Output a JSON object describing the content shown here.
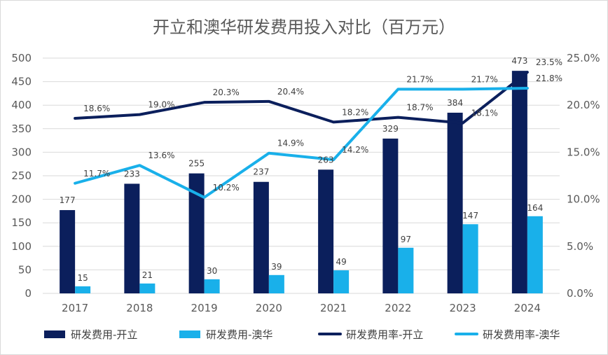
{
  "chart_data": {
    "type": "bar",
    "title": "开立和澳华研发费用投入对比（百万元）",
    "categories": [
      "2017",
      "2018",
      "2019",
      "2020",
      "2021",
      "2022",
      "2023",
      "2024"
    ],
    "y_left": {
      "min": 0,
      "max": 500,
      "step": 50,
      "ticks": [
        "0",
        "50",
        "100",
        "150",
        "200",
        "250",
        "300",
        "350",
        "400",
        "450",
        "500"
      ]
    },
    "y_right": {
      "min": 0,
      "max": 25,
      "step": 5,
      "ticks": [
        "0.0%",
        "5.0%",
        "10.0%",
        "15.0%",
        "20.0%",
        "25.0%"
      ]
    },
    "series": [
      {
        "name": "研发费用-开立",
        "kind": "bar",
        "axis": "left",
        "color": "#0b1f5c",
        "values": [
          177,
          233,
          255,
          237,
          263,
          329,
          384,
          473
        ],
        "labels": [
          "177",
          "233",
          "255",
          "237",
          "263",
          "329",
          "384",
          "473"
        ]
      },
      {
        "name": "研发费用-澳华",
        "kind": "bar",
        "axis": "left",
        "color": "#19b0ea",
        "values": [
          15,
          21,
          30,
          39,
          49,
          97,
          147,
          164
        ],
        "labels": [
          "15",
          "21",
          "30",
          "39",
          "49",
          "97",
          "147",
          "164"
        ]
      },
      {
        "name": "研发费用率-开立",
        "kind": "line",
        "axis": "right",
        "color": "#0b1f5c",
        "values": [
          18.6,
          19.0,
          20.3,
          20.4,
          18.2,
          18.7,
          18.1,
          23.5
        ],
        "labels": [
          "18.6%",
          "19.0%",
          "20.3%",
          "20.4%",
          "18.2%",
          "18.7%",
          "18.1%",
          "23.5%"
        ]
      },
      {
        "name": "研发费用率-澳华",
        "kind": "line",
        "axis": "right",
        "color": "#19b0ea",
        "values": [
          11.7,
          13.6,
          10.2,
          14.9,
          14.2,
          21.7,
          21.7,
          21.8
        ],
        "labels": [
          "11.7%",
          "13.6%",
          "10.2%",
          "14.9%",
          "14.2%",
          "21.7%",
          "21.7%",
          "21.8%"
        ]
      }
    ],
    "gridlines": true,
    "legend_position": "bottom"
  }
}
